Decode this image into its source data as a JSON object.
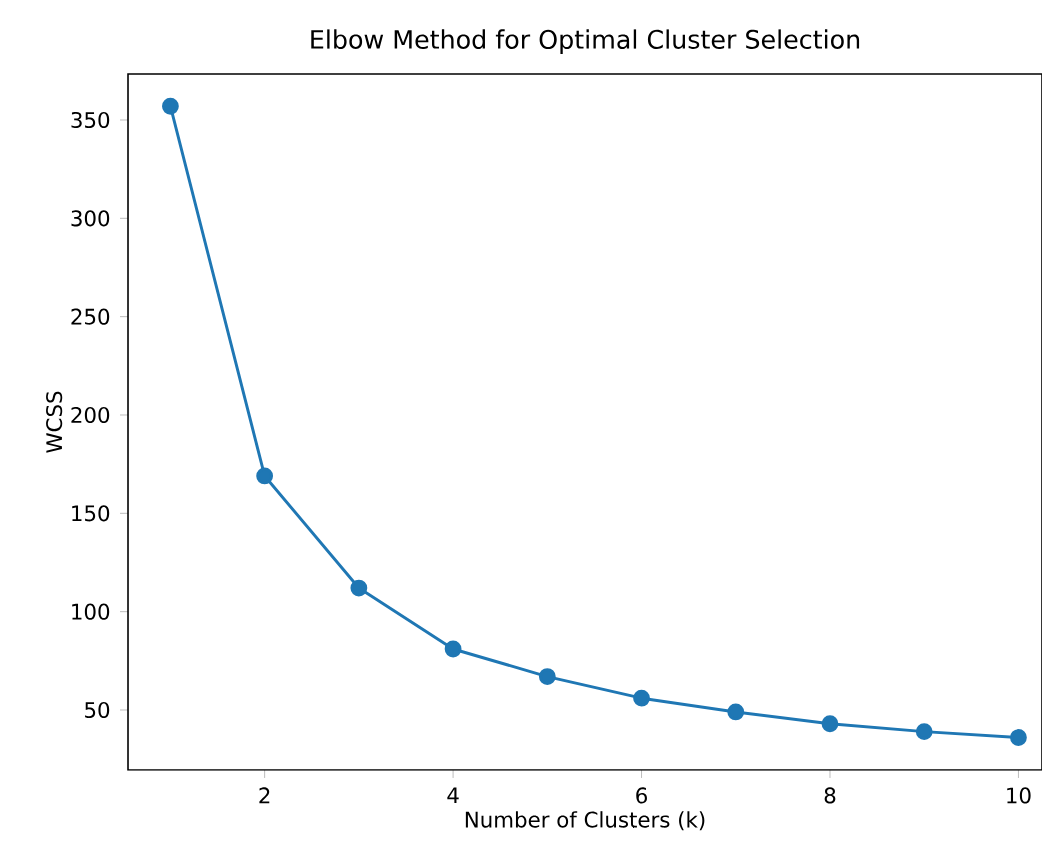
{
  "chart_data": {
    "type": "line",
    "title": "Elbow Method for Optimal Cluster Selection",
    "xlabel": "Number of Clusters (k)",
    "ylabel": "WCSS",
    "x": [
      1,
      2,
      3,
      4,
      5,
      6,
      7,
      8,
      9,
      10
    ],
    "series": [
      {
        "color": "#1f77b4",
        "values": [
          357,
          169,
          112,
          81,
          67,
          56,
          49,
          43,
          39,
          36
        ]
      }
    ],
    "marker": "circle",
    "line_style": "solid",
    "grid": false,
    "xlim": [
      0.55,
      10.25
    ],
    "ylim": [
      19.5,
      373.4
    ],
    "xticks": [
      2,
      4,
      6,
      8,
      10
    ],
    "yticks": [
      50,
      100,
      150,
      200,
      250,
      300,
      350
    ]
  }
}
